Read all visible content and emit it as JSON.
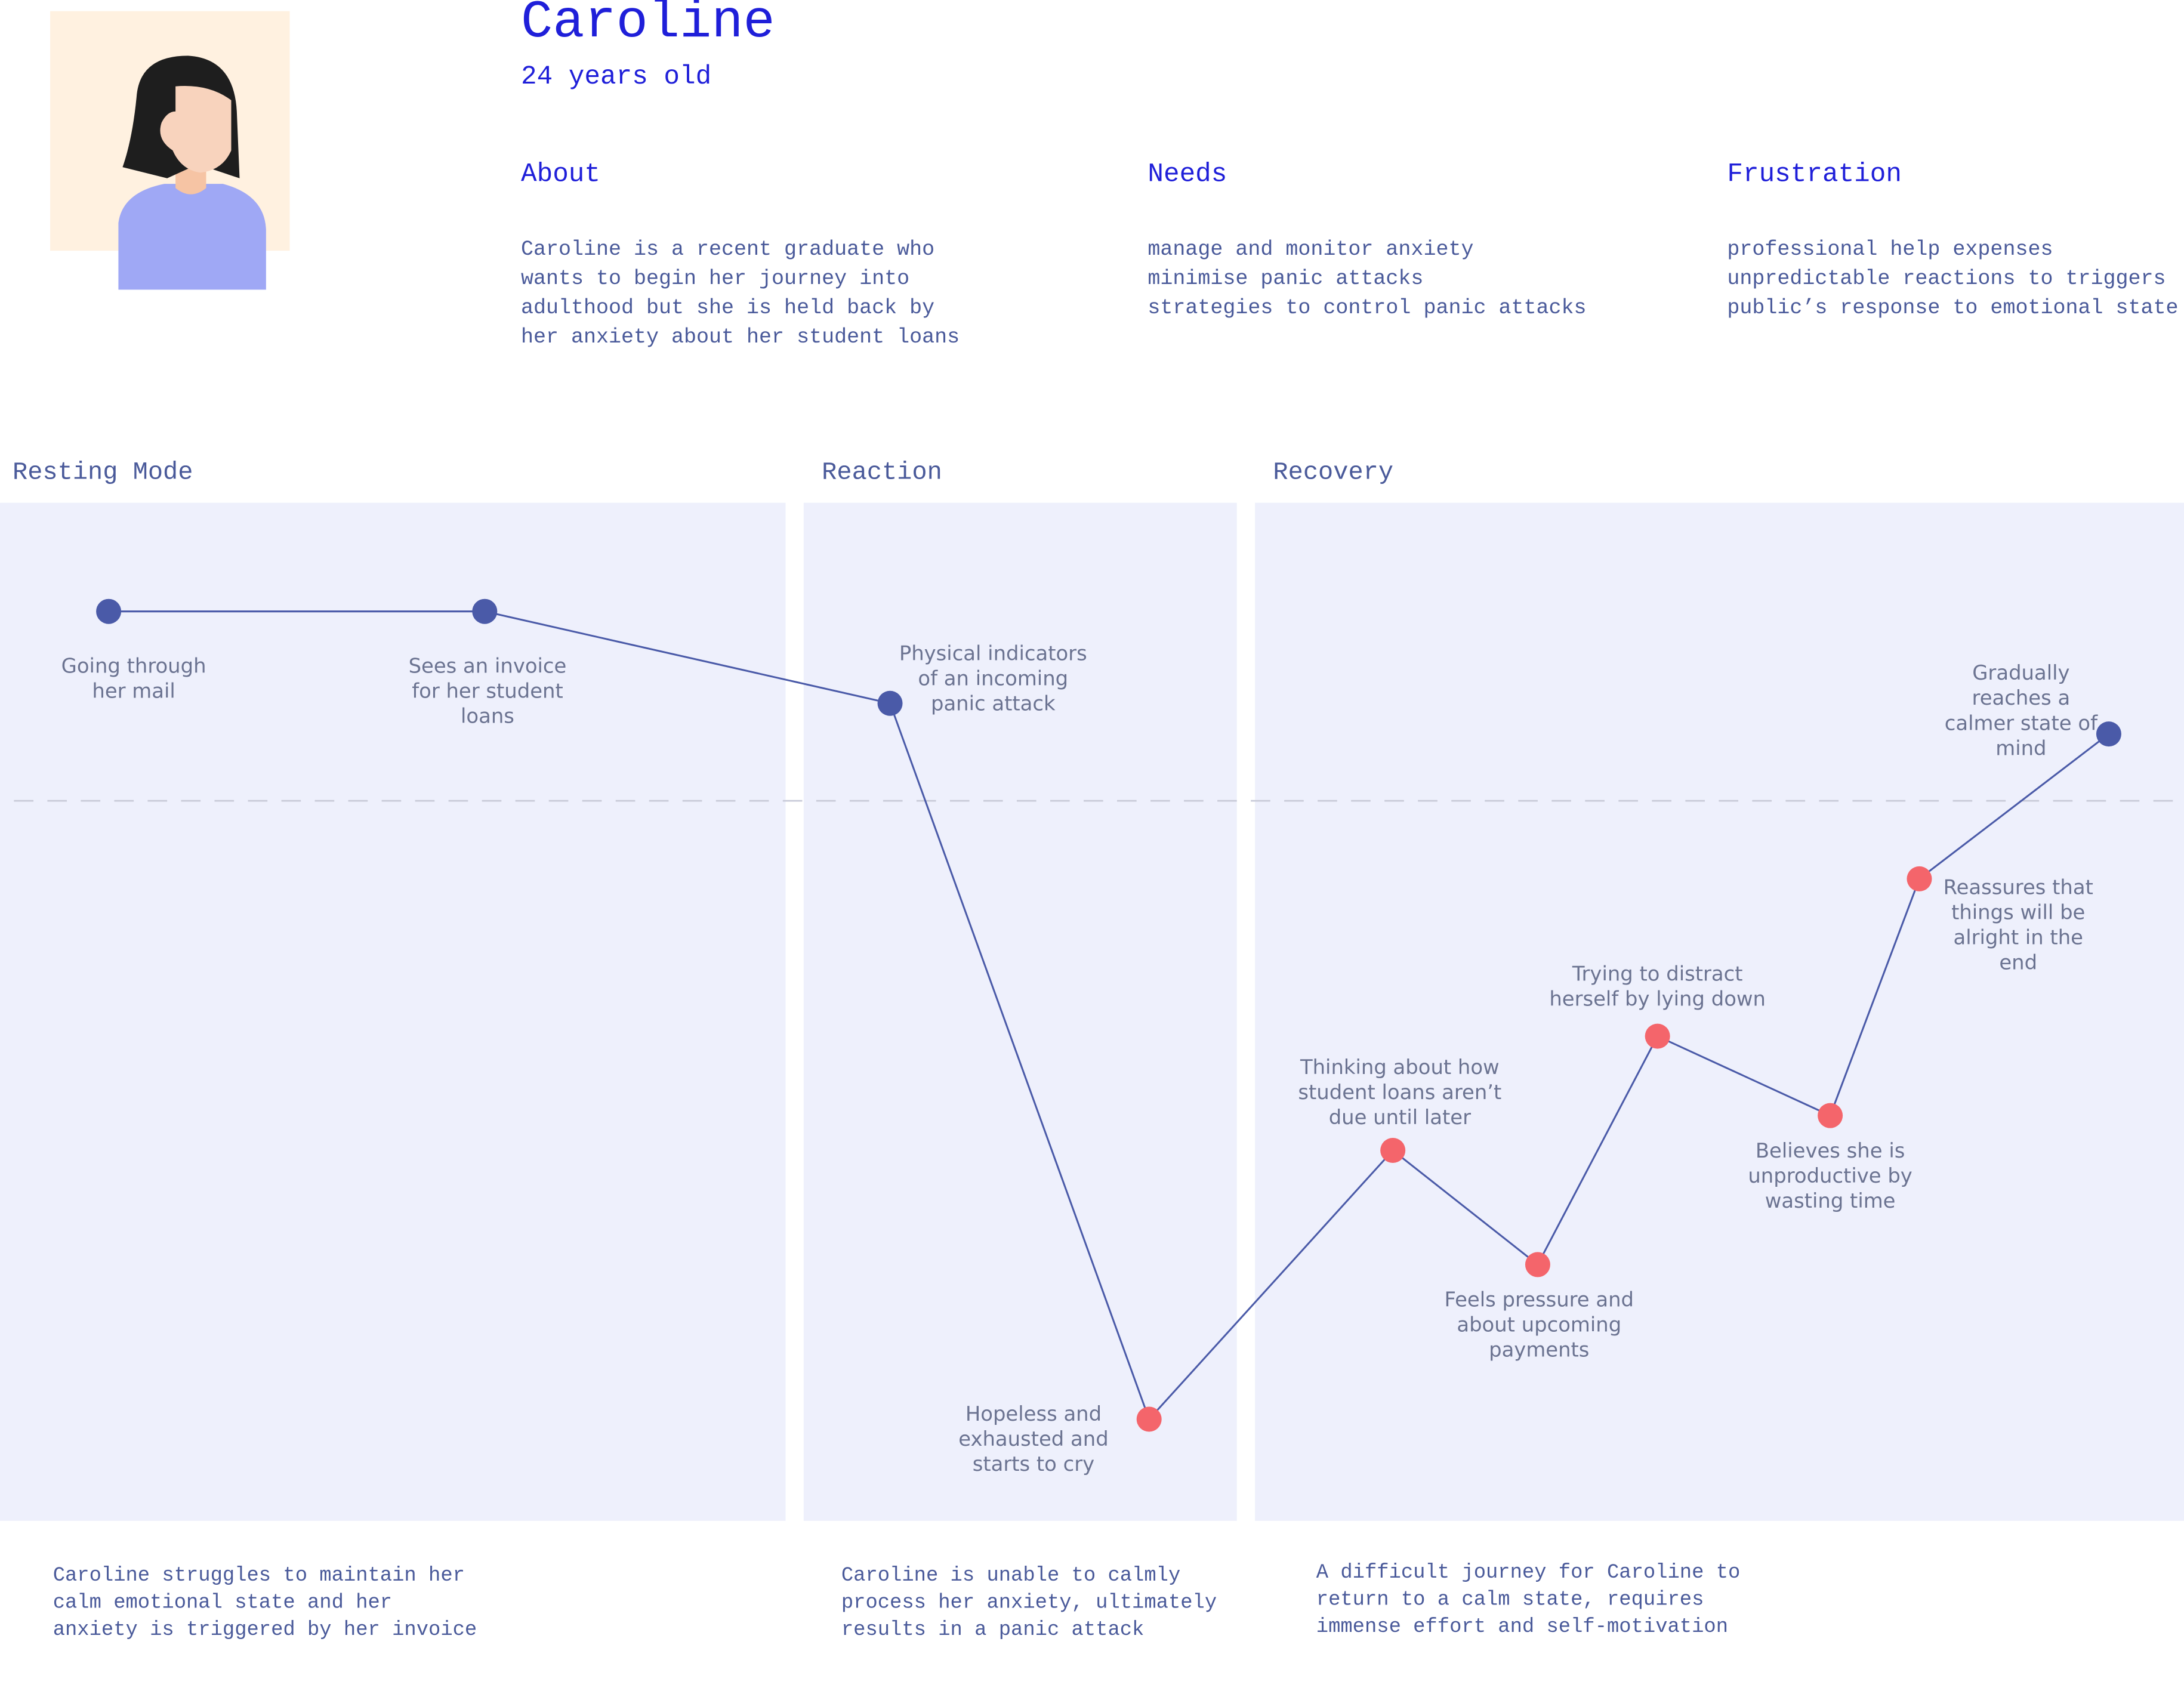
{
  "persona": {
    "name": "Caroline",
    "age": "24 years old",
    "sections": [
      {
        "heading": "About",
        "lines": [
          "Caroline is a recent graduate who",
          "wants to begin her journey into",
          "adulthood but she is held back by",
          "her anxiety about her student loans"
        ]
      },
      {
        "heading": "Needs",
        "lines": [
          "manage and monitor anxiety",
          "minimise panic attacks",
          "strategies to control panic attacks"
        ]
      },
      {
        "heading": "Frustration",
        "lines": [
          "professional help expenses",
          "unpredictable reactions to triggers",
          "public’s response to emotional state"
        ]
      }
    ]
  },
  "journey": {
    "phases": [
      {
        "title": "Resting Mode",
        "summary": [
          "Caroline struggles to maintain her",
          "calm emotional state and her",
          "anxiety is triggered by her invoice"
        ]
      },
      {
        "title": "Reaction",
        "summary": [
          "Caroline is unable to calmly",
          "process her anxiety, ultimately",
          "results in a panic attack"
        ]
      },
      {
        "title": "Recovery",
        "summary": [
          "A difficult journey for Caroline to",
          "return to a calm state, requires",
          "immense effort and self-motivation"
        ]
      }
    ],
    "points": [
      {
        "label": [
          "Going through",
          "her mail"
        ]
      },
      {
        "label": [
          "Sees an invoice",
          "for her student",
          "loans"
        ]
      },
      {
        "label": [
          "Physical indicators",
          "of an incoming",
          "panic attack"
        ]
      },
      {
        "label": [
          "Hopeless and",
          "exhausted and",
          "starts to cry"
        ]
      },
      {
        "label": [
          "Thinking about how",
          "student loans aren’t",
          "due until later"
        ]
      },
      {
        "label": [
          "Feels pressure and",
          "about upcoming",
          "payments"
        ]
      },
      {
        "label": [
          "Trying to distract",
          "herself by lying down"
        ]
      },
      {
        "label": [
          "Believes she is",
          "unproductive by",
          "wasting time"
        ]
      },
      {
        "label": [
          "Reassures that",
          "things will be",
          "alright in the",
          "end"
        ]
      },
      {
        "label": [
          "Gradually",
          "reaches a",
          "calmer state of",
          "mind"
        ]
      }
    ]
  }
}
